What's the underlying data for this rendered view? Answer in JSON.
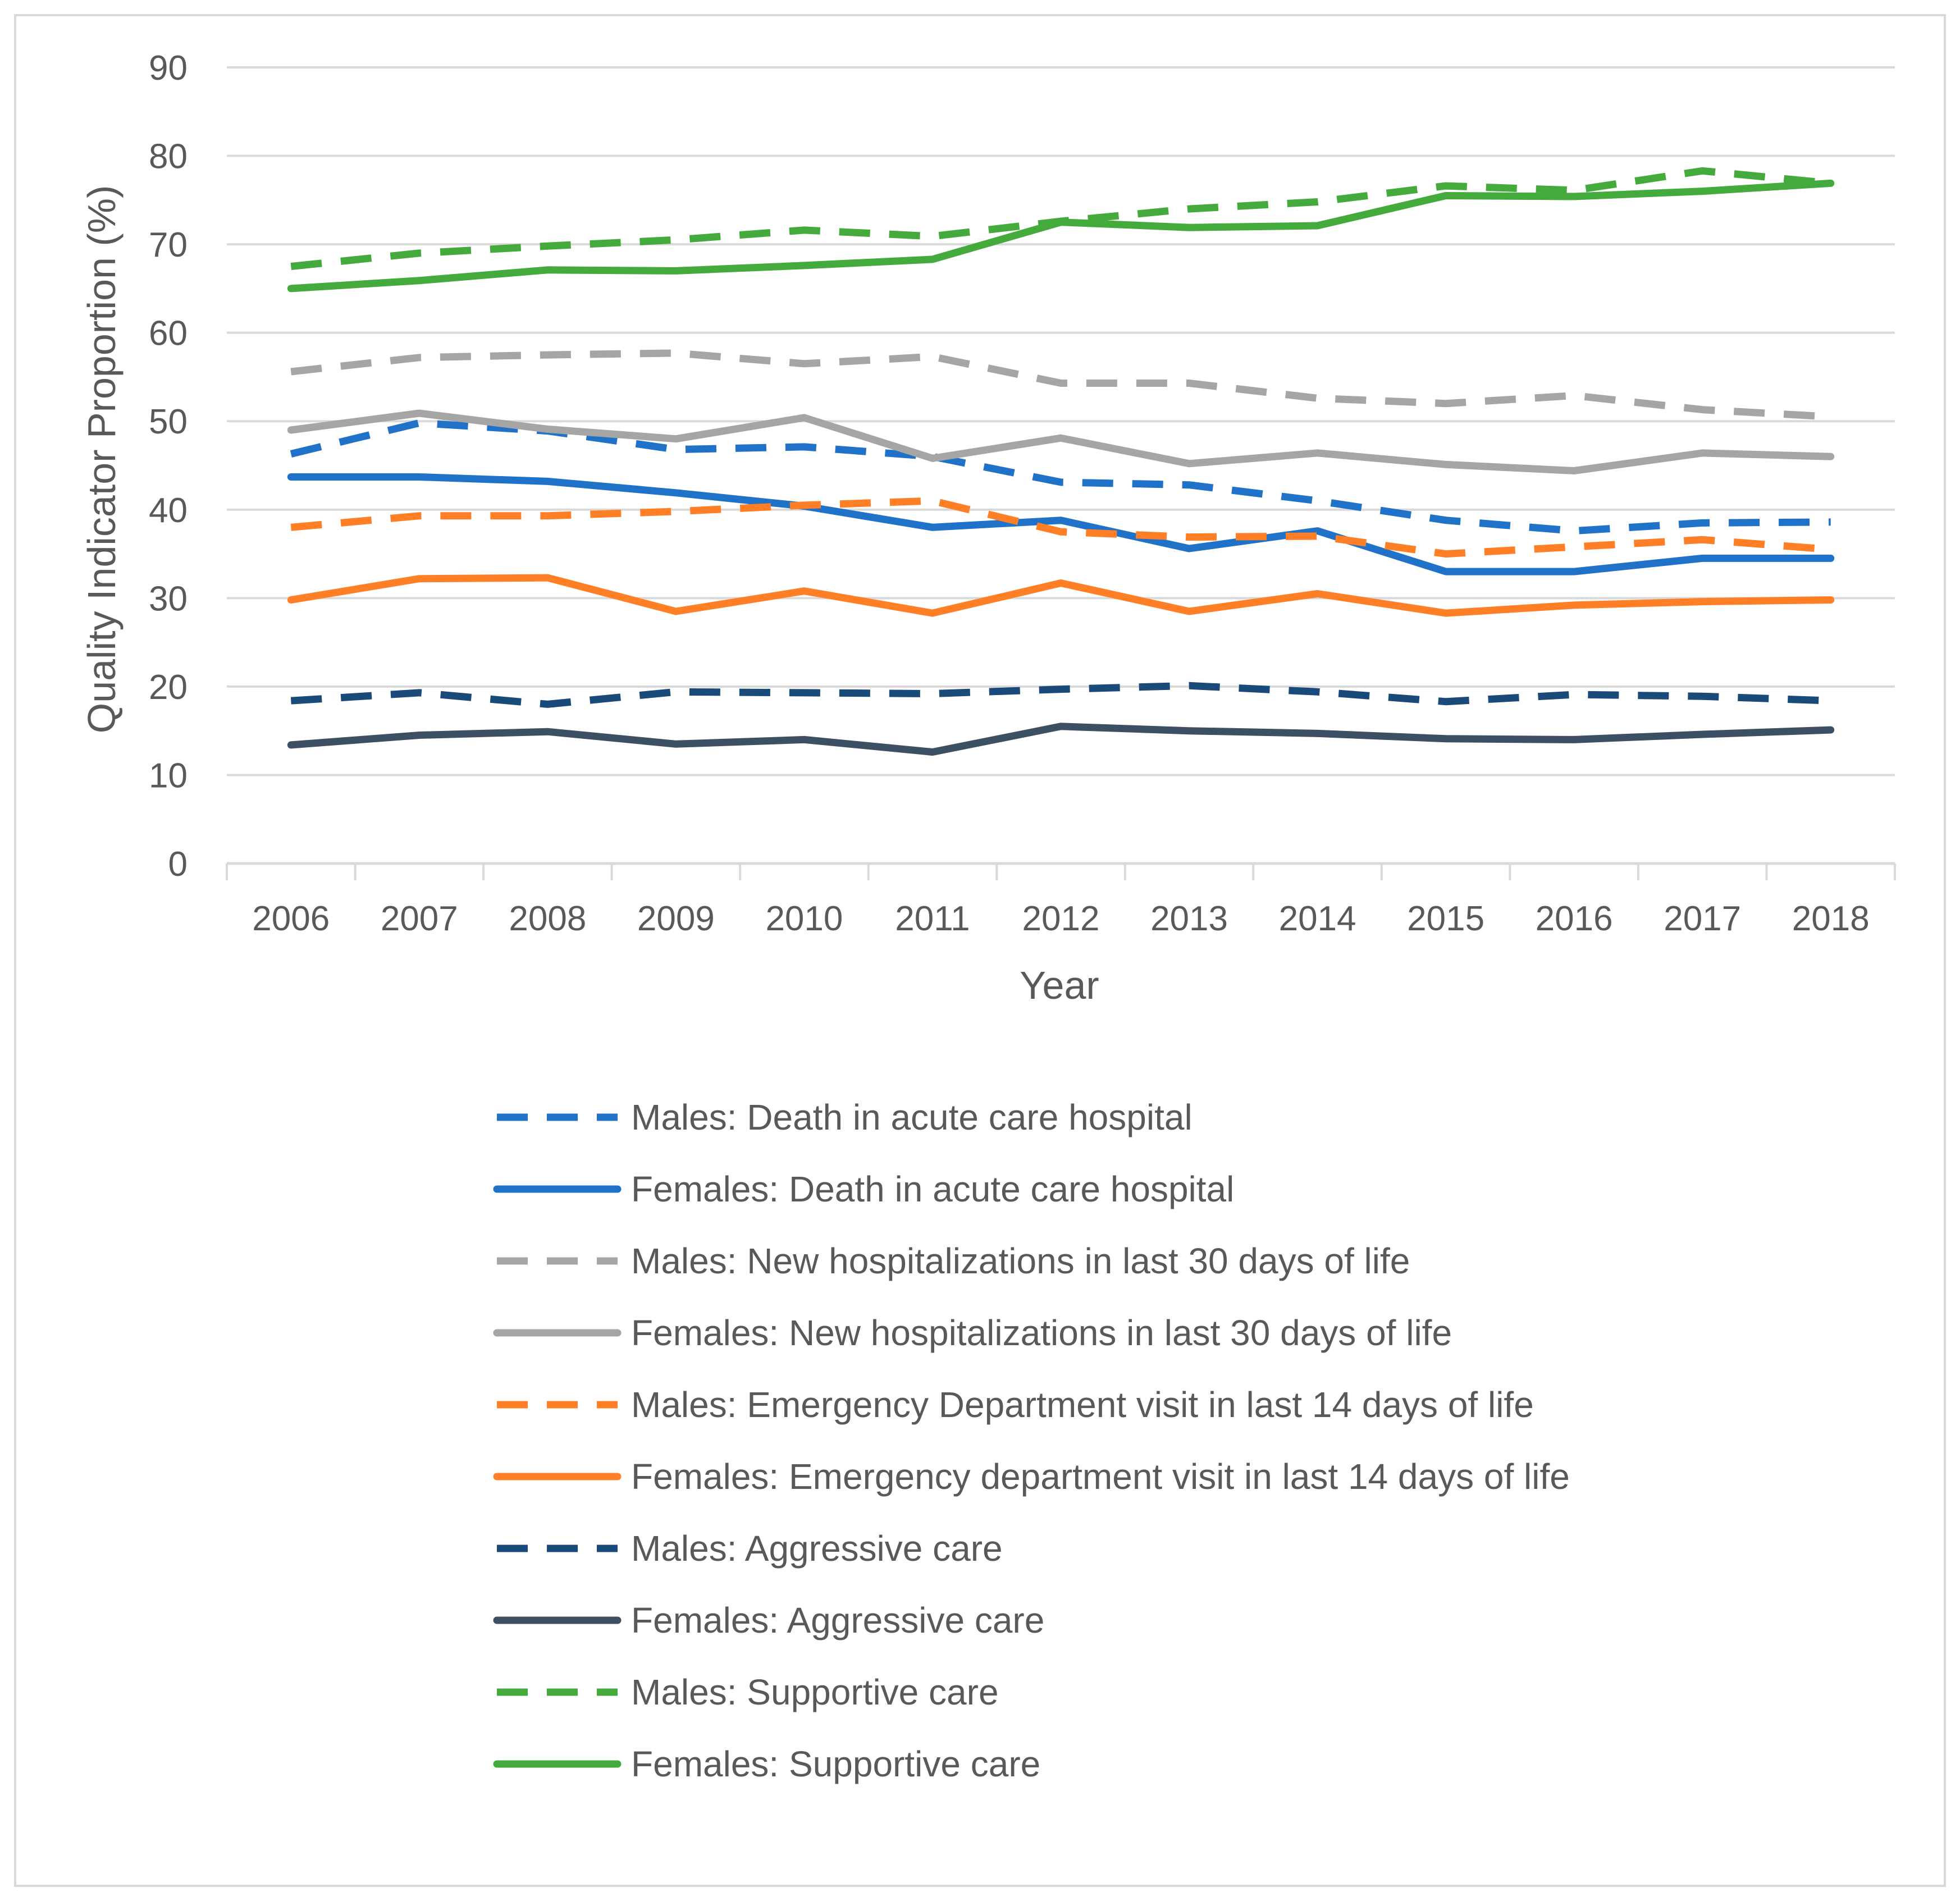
{
  "chart_data": {
    "type": "line",
    "title": "",
    "xlabel": "Year",
    "ylabel": "Quality Indicator Proportion (%)",
    "ylim": [
      0,
      90
    ],
    "yticks": [
      0,
      10,
      20,
      30,
      40,
      50,
      60,
      70,
      80,
      90
    ],
    "grid": true,
    "legend_position": "bottom",
    "categories": [
      "2006",
      "2007",
      "2008",
      "2009",
      "2010",
      "2011",
      "2012",
      "2013",
      "2014",
      "2015",
      "2016",
      "2017",
      "2018"
    ],
    "series": [
      {
        "name": "Males: Death in acute care hospital",
        "color": "#1f72c8",
        "dash": "dashed",
        "values": [
          46.3,
          49.8,
          48.9,
          46.8,
          47.1,
          46.0,
          43.1,
          42.8,
          41.0,
          38.8,
          37.6,
          38.5,
          38.6
        ]
      },
      {
        "name": "Females: Death in acute care hospital",
        "color": "#1f72c8",
        "dash": "solid",
        "values": [
          43.7,
          43.7,
          43.2,
          41.9,
          40.4,
          38.0,
          38.8,
          35.6,
          37.6,
          33.0,
          33.0,
          34.5,
          34.5
        ]
      },
      {
        "name": "Males: New hospitalizations in last 30 days of life",
        "color": "#a5a5a5",
        "dash": "dashed",
        "values": [
          55.6,
          57.2,
          57.5,
          57.7,
          56.5,
          57.3,
          54.3,
          54.3,
          52.6,
          52.0,
          52.9,
          51.3,
          50.5
        ]
      },
      {
        "name": "Females: New hospitalizations in last 30 days of life",
        "color": "#a5a5a5",
        "dash": "solid",
        "values": [
          49.0,
          50.9,
          49.1,
          48.0,
          50.4,
          45.8,
          48.1,
          45.2,
          46.4,
          45.1,
          44.4,
          46.4,
          46.0
        ]
      },
      {
        "name": "Males: Emergency Department visit in last 14 days of life",
        "color": "#ff7f27",
        "dash": "dashed",
        "values": [
          38.0,
          39.3,
          39.3,
          39.8,
          40.5,
          41.0,
          37.5,
          36.9,
          37.0,
          35.0,
          35.8,
          36.6,
          35.5
        ]
      },
      {
        "name": "Females: Emergency department visit in last 14 days of life",
        "color": "#ff7f27",
        "dash": "solid",
        "values": [
          29.8,
          32.2,
          32.3,
          28.5,
          30.8,
          28.3,
          31.7,
          28.5,
          30.5,
          28.3,
          29.2,
          29.6,
          29.8
        ]
      },
      {
        "name": "Males: Aggressive care",
        "color": "#1a4a7a",
        "dash": "dashed",
        "values": [
          18.4,
          19.3,
          18.0,
          19.4,
          19.3,
          19.2,
          19.7,
          20.1,
          19.4,
          18.3,
          19.1,
          18.9,
          18.4
        ]
      },
      {
        "name": "Females: Aggressive care",
        "color": "#3d4f63",
        "dash": "solid",
        "values": [
          13.4,
          14.5,
          14.9,
          13.5,
          14.0,
          12.6,
          15.5,
          15.0,
          14.7,
          14.1,
          14.0,
          14.6,
          15.1
        ]
      },
      {
        "name": "Males: Supportive care",
        "color": "#44aa3c",
        "dash": "dashed",
        "values": [
          67.5,
          69.0,
          69.8,
          70.5,
          71.6,
          70.9,
          72.6,
          74.0,
          74.8,
          76.6,
          76.1,
          78.3,
          76.9
        ]
      },
      {
        "name": "Females: Supportive care",
        "color": "#44aa3c",
        "dash": "solid",
        "values": [
          65.0,
          65.9,
          67.1,
          67.0,
          67.6,
          68.3,
          72.5,
          71.9,
          72.1,
          75.5,
          75.4,
          76.0,
          76.9
        ]
      }
    ]
  }
}
